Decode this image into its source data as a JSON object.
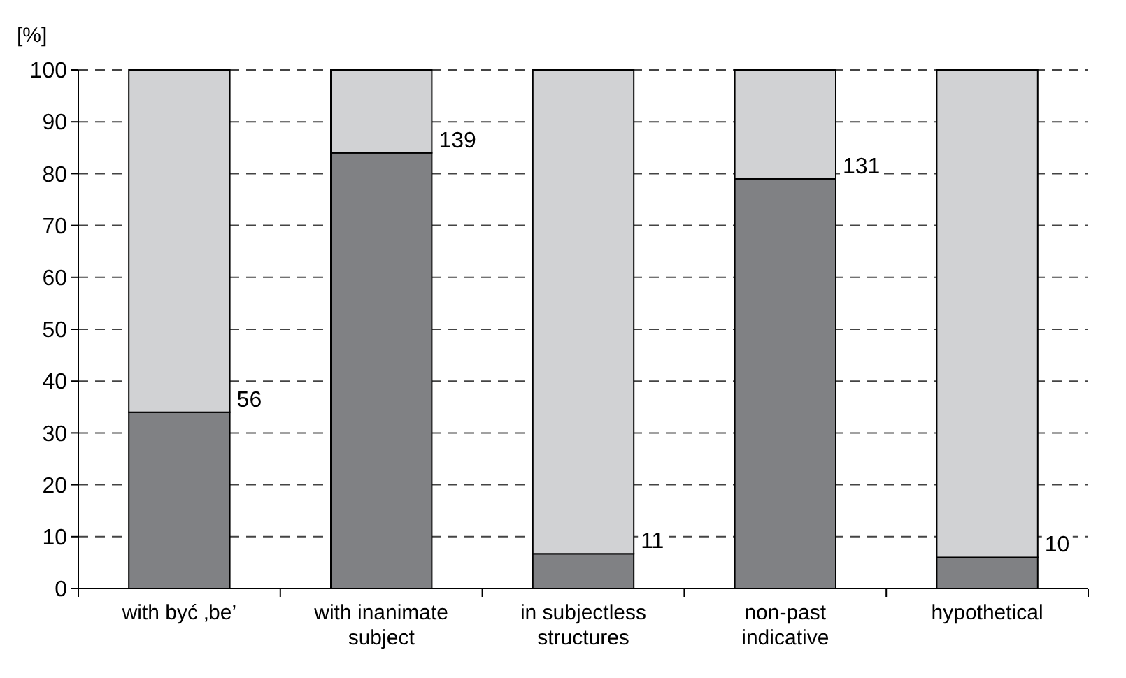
{
  "chart_data": {
    "type": "bar",
    "stacked": true,
    "ylabel": "[%]",
    "categories": [
      "with być ‚be’",
      "with inanimate subject",
      "in subjectless structures",
      "non-past indicative",
      "hypothetical"
    ],
    "series": [
      {
        "color": "#808184",
        "values": [
          34,
          84,
          6.7,
          79,
          6
        ]
      },
      {
        "color": "#d1d2d4",
        "values": [
          66,
          16,
          93.3,
          21,
          94
        ]
      }
    ],
    "ylim": [
      0,
      100
    ],
    "yticks": [
      0,
      10,
      20,
      30,
      40,
      50,
      60,
      70,
      80,
      90,
      100
    ],
    "grid": "y",
    "line_style": "dashed",
    "annotations": [
      {
        "text": "56",
        "x": "with być ‚be’",
        "y": 34
      },
      {
        "text": "139",
        "x": "with inanimate subject",
        "y": 84
      },
      {
        "text": "11",
        "x": "in subjectless structures",
        "y": 6.7
      },
      {
        "text": "131",
        "x": "non-past indicative",
        "y": 79
      },
      {
        "text": "10",
        "x": "hypothetical",
        "y": 6
      }
    ]
  }
}
